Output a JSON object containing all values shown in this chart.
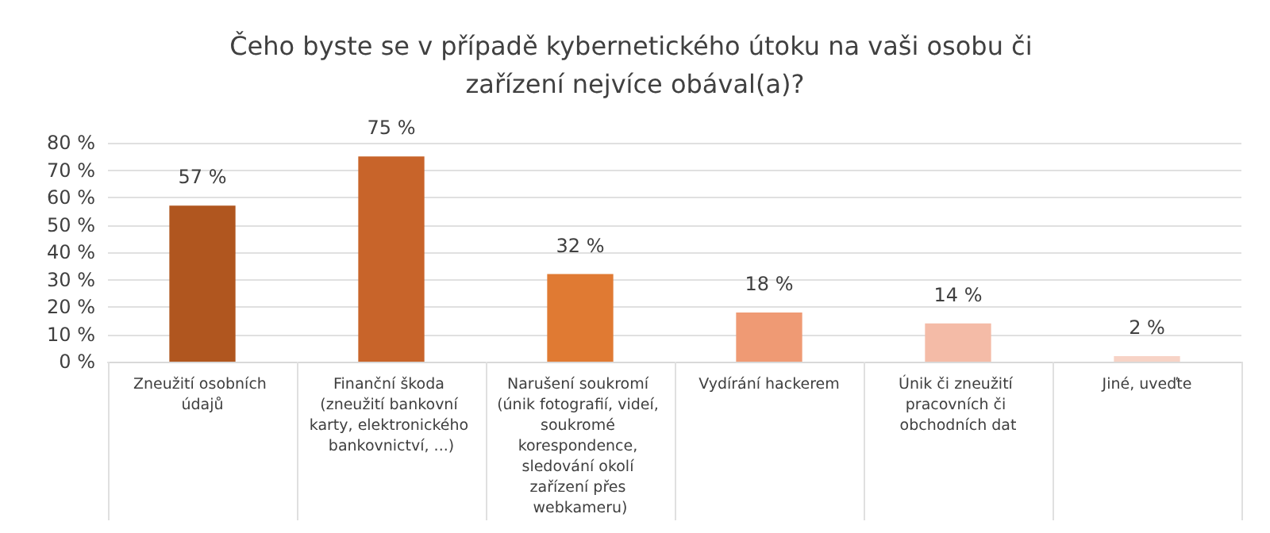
{
  "chart_data": {
    "type": "bar",
    "title": "Čeho byste se v případě kybernetického útoku na vaši osobu či zařízení nejvíce obával(a)?",
    "categories": [
      "Zneužití osobních údajů",
      "Finanční škoda (zneužití bankovní karty, elektronického bankovnictví, ...)",
      "Narušení soukromí (únik fotografií, videí, soukromé korespondence, sledování okolí zařízení přes webkameru)",
      "Vydírání hackerem",
      "Únik či zneužití pracovních či obchodních dat",
      "Jiné, uveďte"
    ],
    "values": [
      57,
      75,
      32,
      18,
      14,
      2
    ],
    "colors": [
      "#b0561f",
      "#c8642a",
      "#e07a33",
      "#ef9a74",
      "#f4bba7",
      "#f7d3c6"
    ],
    "value_labels": [
      "57 %",
      "75 %",
      "32 %",
      "18 %",
      "14 %",
      "2 %"
    ],
    "ylim": [
      0,
      80
    ],
    "yticks": [
      {
        "value": 0,
        "label": "0 %"
      },
      {
        "value": 10,
        "label": "10 %"
      },
      {
        "value": 20,
        "label": "20 %"
      },
      {
        "value": 30,
        "label": "30 %"
      },
      {
        "value": 40,
        "label": "40 %"
      },
      {
        "value": 50,
        "label": "50 %"
      },
      {
        "value": 60,
        "label": "60 %"
      },
      {
        "value": 70,
        "label": "70 %"
      },
      {
        "value": 80,
        "label": "80 %"
      }
    ],
    "grid": "y"
  }
}
